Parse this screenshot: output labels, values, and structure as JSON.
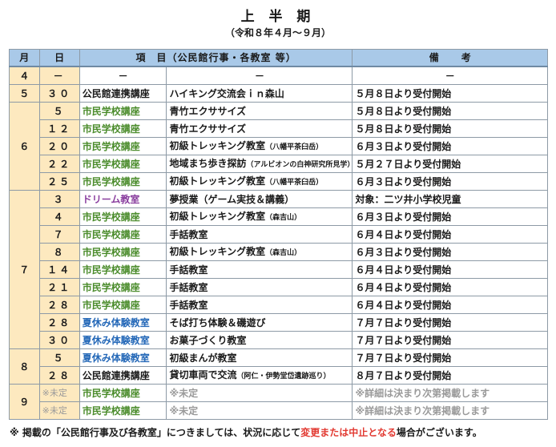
{
  "title": "上 半 期",
  "subtitle": "（令和８年４月～９月）",
  "header": {
    "month": "月",
    "day": "日",
    "item": "項　目（公民館行事・各教室 等）",
    "note": "備考"
  },
  "colors": {
    "header_bg": "#a9c9e8",
    "month_day_bg": "#fde9bf",
    "shimin": "#4b8c2c",
    "dream": "#8a3f9f",
    "natsu": "#2468b8",
    "pending": "#9a9a9a",
    "alert": "#e23a32"
  },
  "rows": [
    {
      "month": "４",
      "day": "－",
      "category": "－",
      "item": "－",
      "note": "－"
    },
    {
      "month": "５",
      "day": "３０",
      "category": "公民館連携講座",
      "item": "ハイキング交流会ｉｎ森山",
      "note": "５月８日より受付開始"
    },
    {
      "month": "６",
      "day": "５",
      "category": "市民学校講座",
      "item": "青竹エクササイズ",
      "note": "５月８日より受付開始"
    },
    {
      "day": "１２",
      "category": "市民学校講座",
      "item": "青竹エクササイズ",
      "note": "５月８日より受付開始"
    },
    {
      "day": "２０",
      "category": "市民学校講座",
      "item": "初級トレッキング教室",
      "item_small": "（八幡平茶臼岳）",
      "note": "６月３日より受付開始"
    },
    {
      "day": "２２",
      "category": "市民学校講座",
      "item": "地域まち歩き探訪",
      "item_small": "（アルビオンの白神研究所見学）",
      "note": "５月２７日より受付開始"
    },
    {
      "day": "２５",
      "category": "市民学校講座",
      "item": "初級トレッキング教室",
      "item_small": "（八幡平茶臼岳）",
      "note": "６月３日より受付開始"
    },
    {
      "month": "７",
      "day": "３",
      "category": "ドリーム教室",
      "item": "夢授業（ゲーム実技＆講義）",
      "note": "対象：二ツ井小学校児童"
    },
    {
      "day": "４",
      "category": "市民学校講座",
      "item": "初級トレッキング教室",
      "item_small": "（森吉山）",
      "note": "６月３日より受付開始"
    },
    {
      "day": "７",
      "category": "市民学校講座",
      "item": "手話教室",
      "note": "６月４日より受付開始"
    },
    {
      "day": "８",
      "category": "市民学校講座",
      "item": "初級トレッキング教室",
      "item_small": "（森吉山）",
      "note": "６月３日より受付開始"
    },
    {
      "day": "１４",
      "category": "市民学校講座",
      "item": "手話教室",
      "note": "６月４日より受付開始"
    },
    {
      "day": "２１",
      "category": "市民学校講座",
      "item": "手話教室",
      "note": "６月４日より受付開始"
    },
    {
      "day": "２８",
      "category": "市民学校講座",
      "item": "手話教室",
      "note": "６月４日より受付開始"
    },
    {
      "day": "２８",
      "category": "夏休み体験教室",
      "item": "そば打ち体験＆磯遊び",
      "note": "７月７日より受付開始"
    },
    {
      "day": "３０",
      "category": "夏休み体験教室",
      "item": "お菓子づくり教室",
      "note": "７月７日より受付開始"
    },
    {
      "month": "８",
      "day": "５",
      "category": "夏休み体験教室",
      "item": "初級まんが教室",
      "note": "７月７日より受付開始"
    },
    {
      "day": "２８",
      "category": "公民館連携講座",
      "item": "貸切車両で交流",
      "item_small": "（阿仁・伊勢堂岱遺跡巡り）",
      "note": "８月７日より受付開始"
    },
    {
      "month": "９",
      "day": "※未定",
      "category": "市民学校講座",
      "item": "※未定",
      "note": "※詳細は決まり次第掲載します"
    },
    {
      "day": "※未定",
      "category": "市民学校講座",
      "item": "※未定",
      "note": "※詳細は決まり次第掲載します"
    }
  ],
  "footnote": {
    "before": "※ 掲載の「公民館行事及び各教室」につきましては、状況に応じて",
    "highlight": "変更または中止となる",
    "after": "場合がございます。"
  }
}
